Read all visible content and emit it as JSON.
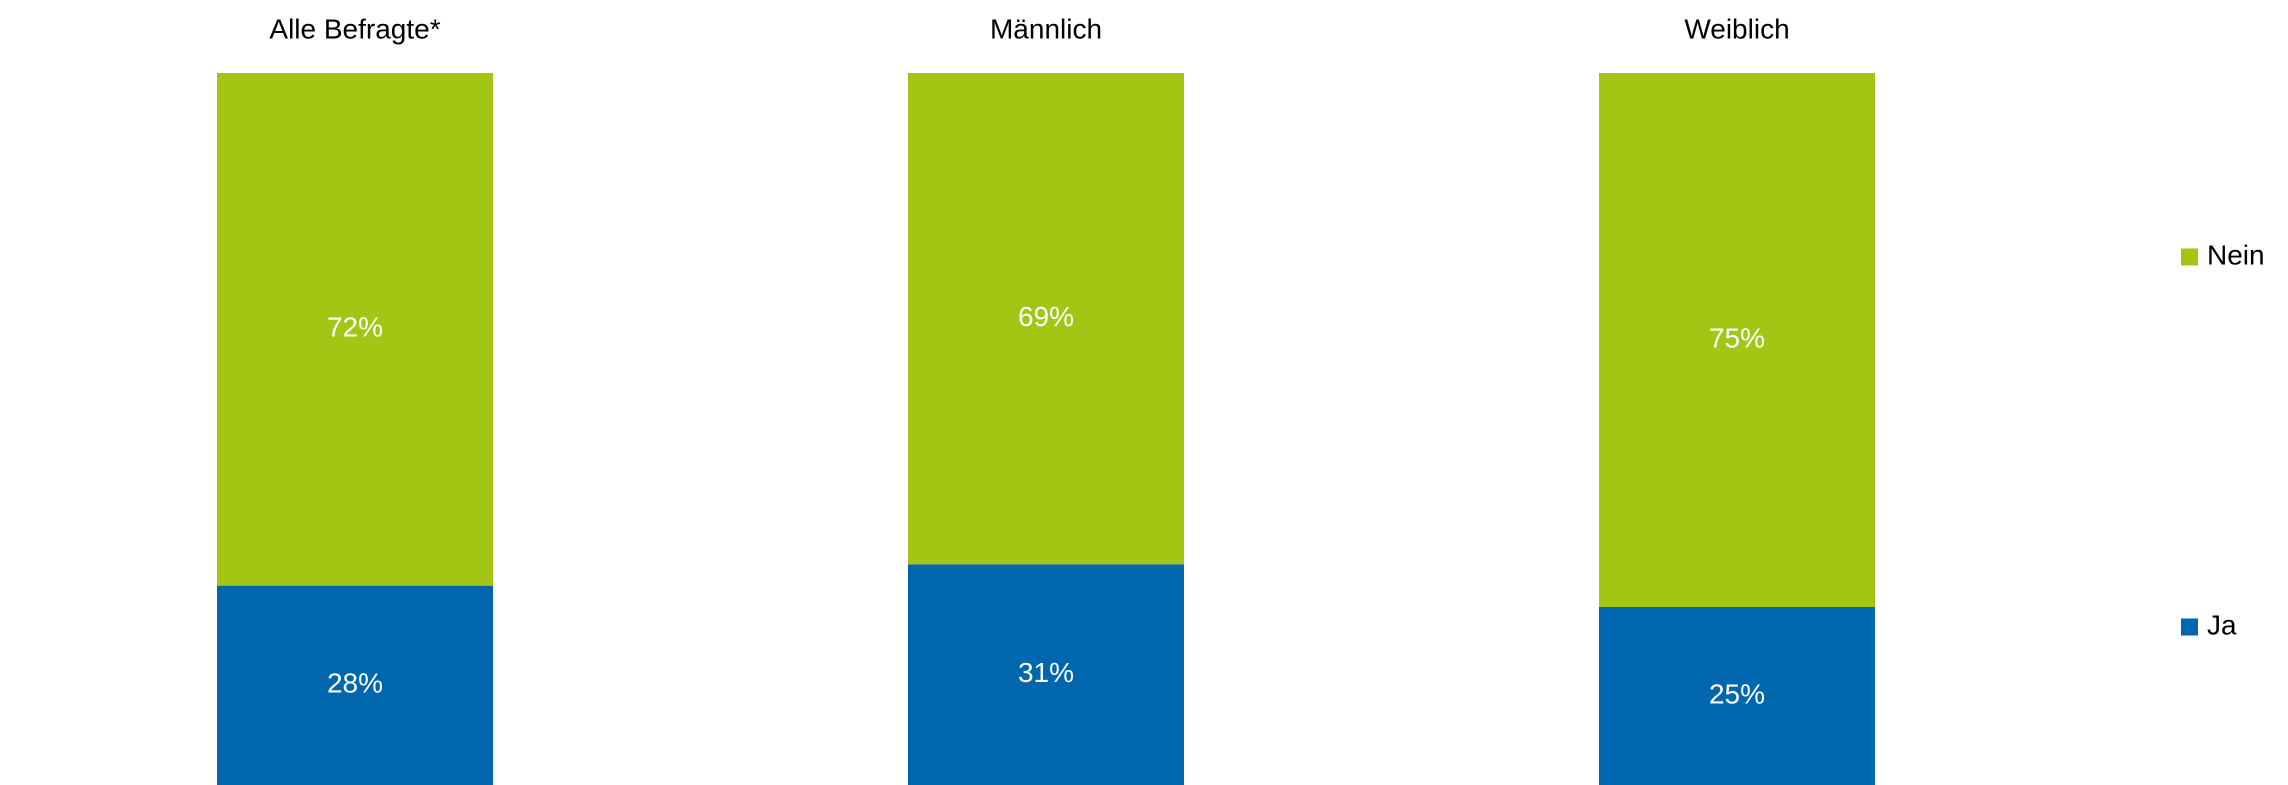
{
  "chart_data": {
    "type": "bar",
    "stacked": true,
    "percent_stacked": true,
    "categories": [
      "Alle Befragte*",
      "Männlich",
      "Weiblich"
    ],
    "series": [
      {
        "name": "Ja",
        "values": [
          28,
          31,
          25
        ],
        "labels": [
          "28%",
          "31%",
          "25%"
        ],
        "color": "#0066AE"
      },
      {
        "name": "Nein",
        "values": [
          72,
          69,
          75
        ],
        "labels": [
          "72%",
          "69%",
          "75%"
        ],
        "color": "#A3C614"
      }
    ],
    "title": "",
    "xlabel": "",
    "ylabel": "",
    "ylim": [
      0,
      100
    ],
    "grid": false,
    "legend": {
      "placement": "right",
      "items": [
        {
          "name": "Nein",
          "color": "#A3C614"
        },
        {
          "name": "Ja",
          "color": "#0066AE"
        }
      ]
    }
  }
}
